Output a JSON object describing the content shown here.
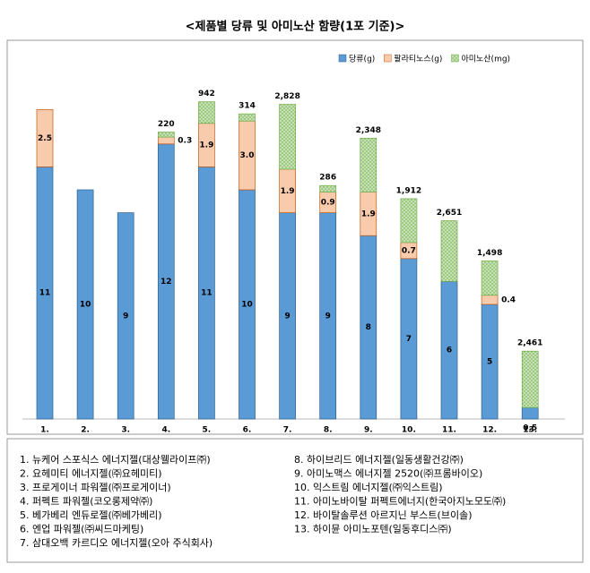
{
  "chart_data": {
    "type": "stacked_bar",
    "title": "<제품별 당류 및 아미노산 함량(1포 기준)>",
    "categories": [
      "1.",
      "2.",
      "3.",
      "4.",
      "5.",
      "6.",
      "7.",
      "8.",
      "9.",
      "10.",
      "11.",
      "12.",
      "13."
    ],
    "series": [
      {
        "name": "당류(g)",
        "color": "#5b9bd5",
        "values": [
          11,
          10,
          9,
          12,
          11,
          10,
          9,
          9,
          8,
          7,
          6,
          5,
          0.5
        ]
      },
      {
        "name": "팔라티노스(g)",
        "color": "#f8cbad",
        "values": [
          2.5,
          null,
          null,
          0.3,
          1.9,
          3,
          1.9,
          0.9,
          1.9,
          0.7,
          null,
          0.4,
          null
        ],
        "value_labels": [
          "2.5",
          null,
          null,
          "0.3",
          "1.9",
          "3.0",
          "1.9",
          "0.9",
          "1.9",
          "0.7",
          null,
          "0.4",
          null
        ]
      },
      {
        "name": "아미노산(mg)",
        "color": "#a9d18e",
        "values": [
          null,
          null,
          null,
          220,
          942,
          314,
          2828,
          286,
          2348,
          1912,
          2651,
          1498,
          2461
        ],
        "value_labels": [
          null,
          null,
          null,
          "220",
          "942",
          "314",
          "2,828",
          "286",
          "2,348",
          "1,912",
          "2,651",
          "1,498",
          "2,461"
        ]
      }
    ],
    "legend_position": "top-right",
    "product_notes": [
      "1.  뉴케어 스포식스 에너지젤(대상웰라이프㈜)",
      "2.  요헤미티 에너지젤(㈜요헤미티)",
      "3.  프로게이너 파워젤(㈜프로게이너)",
      "4.  퍼펙트   파워젤(코오롱제약㈜)",
      "5.  베가베리 엔듀로젤(㈜베가베리)",
      "6.  엔업 파워젤(㈜씨드마케팅)",
      "7.  삼대오백 카르디오 에너지젤(오아 주식회사)",
      "8.  하이브리드 에너지젤(일동생활건강㈜)",
      "9.  아미노맥스 에너지젤 2520(㈜프롬바이오)",
      "10.  익스트림 에너지젤(㈜익스트림)",
      "11.  아미노바이탈 퍼펙트에너지(한국아지노모도㈜)",
      "12.  바이탈솔루션 아르지닌 부스트(브이솔)",
      "13.  하이뮨 아미노포텐(일동후디스㈜)"
    ]
  }
}
